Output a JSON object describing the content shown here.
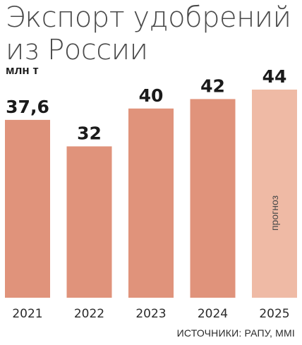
{
  "title_line1": "Экспорт удобрений",
  "title_line2": "из России",
  "unit": "млн т",
  "source": "ИСТОЧНИКИ: РАПУ, MMI",
  "colors": {
    "actual": "#e0937b",
    "forecast": "#efbaa5",
    "text": "#1a1a1a"
  },
  "chart_data": {
    "type": "bar",
    "categories": [
      "2021",
      "2022",
      "2023",
      "2024",
      "2025"
    ],
    "values": [
      37.6,
      32,
      40,
      42,
      44
    ],
    "value_labels": [
      "37,6",
      "32",
      "40",
      "42",
      "44"
    ],
    "forecast": [
      false,
      false,
      false,
      false,
      true
    ],
    "forecast_note": "прогноз",
    "ylabel": "млн т",
    "ylim": [
      0,
      44
    ],
    "grid": false,
    "legend": "none"
  }
}
